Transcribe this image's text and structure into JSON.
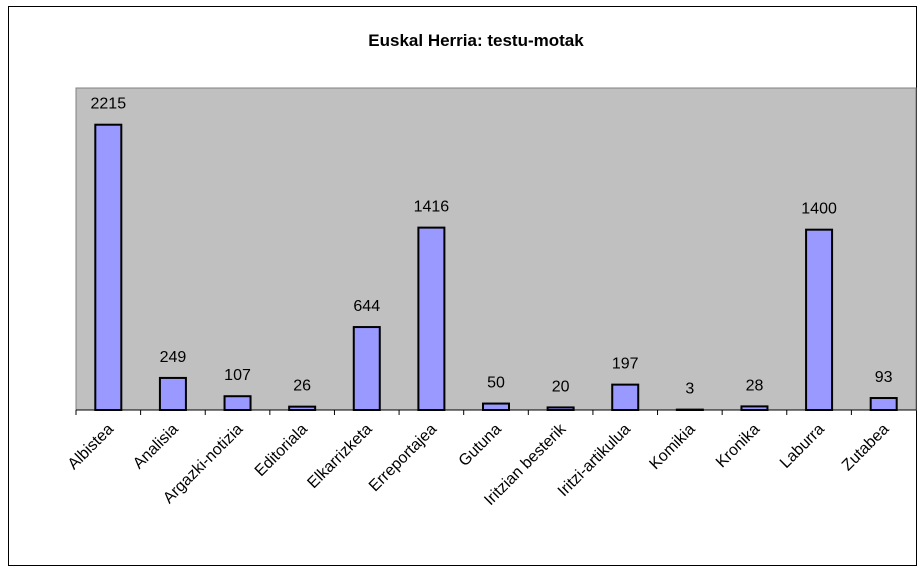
{
  "chart_data": {
    "type": "bar",
    "title": "Euskal Herria: testu-motak",
    "categories": [
      "Albistea",
      "Analisia",
      "Argazki-notizia",
      "Editoriala",
      "Elkarrizketa",
      "Erreportajea",
      "Gutuna",
      "Iritzian besterik",
      "Iritzi-artikulua",
      "Komikia",
      "Kronika",
      "Laburra",
      "Zutabea"
    ],
    "values": [
      2215,
      249,
      107,
      26,
      644,
      1416,
      50,
      20,
      197,
      3,
      28,
      1400,
      93
    ],
    "color": "#9999ff",
    "ylim": [
      0,
      2500
    ]
  }
}
